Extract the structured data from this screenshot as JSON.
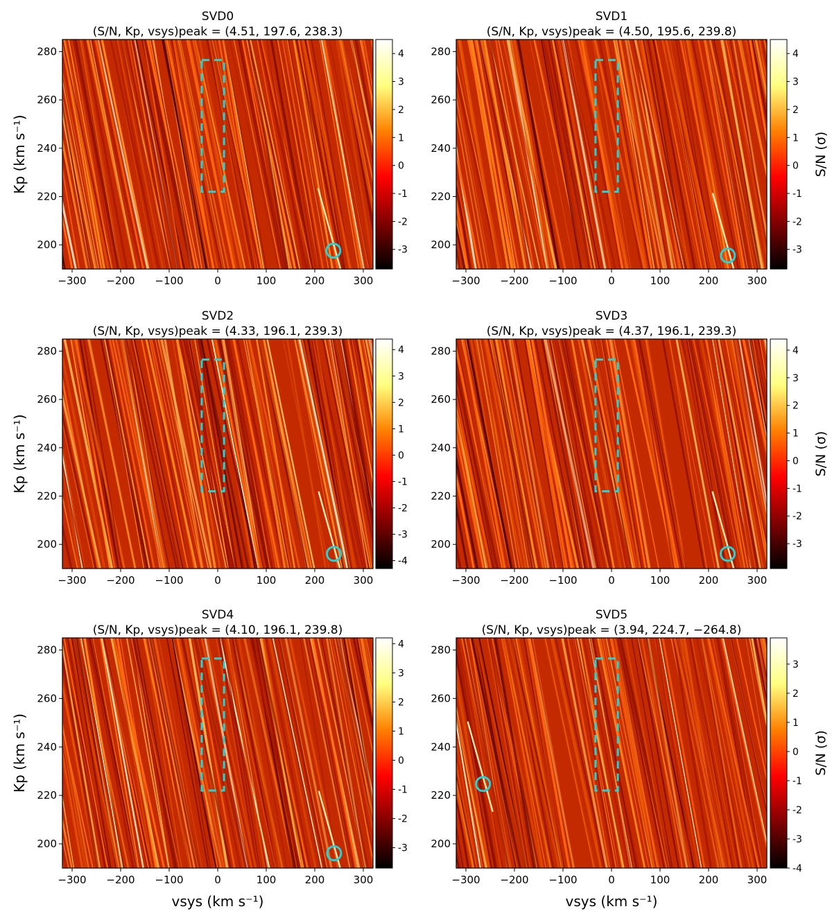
{
  "figure": {
    "colorbar_label": "S/N (σ)",
    "colormap": [
      "#000000",
      "#800000",
      "#ff0000",
      "#ff8000",
      "#ffff80",
      "#ffffff"
    ],
    "box_color": "#27d1d6",
    "circle_color": "#27d1d6"
  },
  "chart_data": [
    {
      "type": "heatmap",
      "title": "SVD0",
      "subtitle": "(S/N,  Kp,  vsys)peak = (4.51,  197.6,  238.3)",
      "peak": {
        "snr": 4.51,
        "kp": 197.6,
        "vsys": 238.3
      },
      "xlim": [
        -320,
        320
      ],
      "ylim": [
        190,
        285
      ],
      "xticks": [
        -300,
        -200,
        -100,
        0,
        100,
        200,
        300
      ],
      "yticks": [
        200,
        220,
        240,
        260,
        280
      ],
      "xlabel": "",
      "ylabel": "Kp (km s⁻¹)",
      "colorbar": {
        "ticks": [
          -3,
          -2,
          -1,
          0,
          1,
          2,
          3,
          4
        ],
        "range": [
          -3.7,
          4.5
        ],
        "label": ""
      },
      "box": {
        "vsys": [
          -33,
          13
        ],
        "kp": [
          222,
          276.5
        ]
      }
    },
    {
      "type": "heatmap",
      "title": "SVD1",
      "subtitle": "(S/N,  Kp,  vsys)peak = (4.50,  195.6,  239.8)",
      "peak": {
        "snr": 4.5,
        "kp": 195.6,
        "vsys": 239.8
      },
      "xlim": [
        -320,
        320
      ],
      "ylim": [
        190,
        285
      ],
      "xticks": [
        -300,
        -200,
        -100,
        0,
        100,
        200,
        300
      ],
      "yticks": [
        200,
        220,
        240,
        260,
        280
      ],
      "xlabel": "",
      "ylabel": "",
      "colorbar": {
        "ticks": [
          -3,
          -2,
          -1,
          0,
          1,
          2,
          3,
          4
        ],
        "range": [
          -3.7,
          4.5
        ],
        "label": "S/N (σ)"
      },
      "box": {
        "vsys": [
          -33,
          13
        ],
        "kp": [
          222,
          276.5
        ]
      }
    },
    {
      "type": "heatmap",
      "title": "SVD2",
      "subtitle": "(S/N,  Kp,  vsys)peak = (4.33,  196.1,  239.3)",
      "peak": {
        "snr": 4.33,
        "kp": 196.1,
        "vsys": 239.3
      },
      "xlim": [
        -320,
        320
      ],
      "ylim": [
        190,
        285
      ],
      "xticks": [
        -300,
        -200,
        -100,
        0,
        100,
        200,
        300
      ],
      "yticks": [
        200,
        220,
        240,
        260,
        280
      ],
      "xlabel": "",
      "ylabel": "Kp (km s⁻¹)",
      "colorbar": {
        "ticks": [
          -4,
          -3,
          -2,
          -1,
          0,
          1,
          2,
          3,
          4
        ],
        "range": [
          -4.3,
          4.4
        ],
        "label": ""
      },
      "box": {
        "vsys": [
          -33,
          13
        ],
        "kp": [
          222,
          276.5
        ]
      }
    },
    {
      "type": "heatmap",
      "title": "SVD3",
      "subtitle": "(S/N,  Kp,  vsys)peak = (4.37,  196.1,  239.3)",
      "peak": {
        "snr": 4.37,
        "kp": 196.1,
        "vsys": 239.3
      },
      "xlim": [
        -320,
        320
      ],
      "ylim": [
        190,
        285
      ],
      "xticks": [
        -300,
        -200,
        -100,
        0,
        100,
        200,
        300
      ],
      "yticks": [
        200,
        220,
        240,
        260,
        280
      ],
      "xlabel": "",
      "ylabel": "",
      "colorbar": {
        "ticks": [
          -3,
          -2,
          -1,
          0,
          1,
          2,
          3,
          4
        ],
        "range": [
          -3.9,
          4.4
        ],
        "label": "S/N (σ)"
      },
      "box": {
        "vsys": [
          -33,
          13
        ],
        "kp": [
          222,
          276.5
        ]
      }
    },
    {
      "type": "heatmap",
      "title": "SVD4",
      "subtitle": "(S/N,  Kp,  vsys)peak = (4.10,  196.1,  239.8)",
      "peak": {
        "snr": 4.1,
        "kp": 196.1,
        "vsys": 239.8
      },
      "xlim": [
        -320,
        320
      ],
      "ylim": [
        190,
        285
      ],
      "xticks": [
        -300,
        -200,
        -100,
        0,
        100,
        200,
        300
      ],
      "yticks": [
        200,
        220,
        240,
        260,
        280
      ],
      "xlabel": "vsys (km s⁻¹)",
      "ylabel": "Kp (km s⁻¹)",
      "colorbar": {
        "ticks": [
          -3,
          -2,
          -1,
          0,
          1,
          2,
          3,
          4
        ],
        "range": [
          -3.7,
          4.2
        ],
        "label": ""
      },
      "box": {
        "vsys": [
          -33,
          13
        ],
        "kp": [
          222,
          276.5
        ]
      }
    },
    {
      "type": "heatmap",
      "title": "SVD5",
      "subtitle": "(S/N,  Kp,  vsys)peak = (3.94,  224.7,  −264.8)",
      "peak": {
        "snr": 3.94,
        "kp": 224.7,
        "vsys": -264.8
      },
      "xlim": [
        -320,
        320
      ],
      "ylim": [
        190,
        285
      ],
      "xticks": [
        -300,
        -200,
        -100,
        0,
        100,
        200,
        300
      ],
      "yticks": [
        200,
        220,
        240,
        260,
        280
      ],
      "xlabel": "vsys (km s⁻¹)",
      "ylabel": "",
      "colorbar": {
        "ticks": [
          -4,
          -3,
          -2,
          -1,
          0,
          1,
          2,
          3
        ],
        "range": [
          -4.0,
          3.9
        ],
        "label": "S/N (σ)"
      },
      "box": {
        "vsys": [
          -33,
          13
        ],
        "kp": [
          222,
          276.5
        ]
      }
    }
  ]
}
